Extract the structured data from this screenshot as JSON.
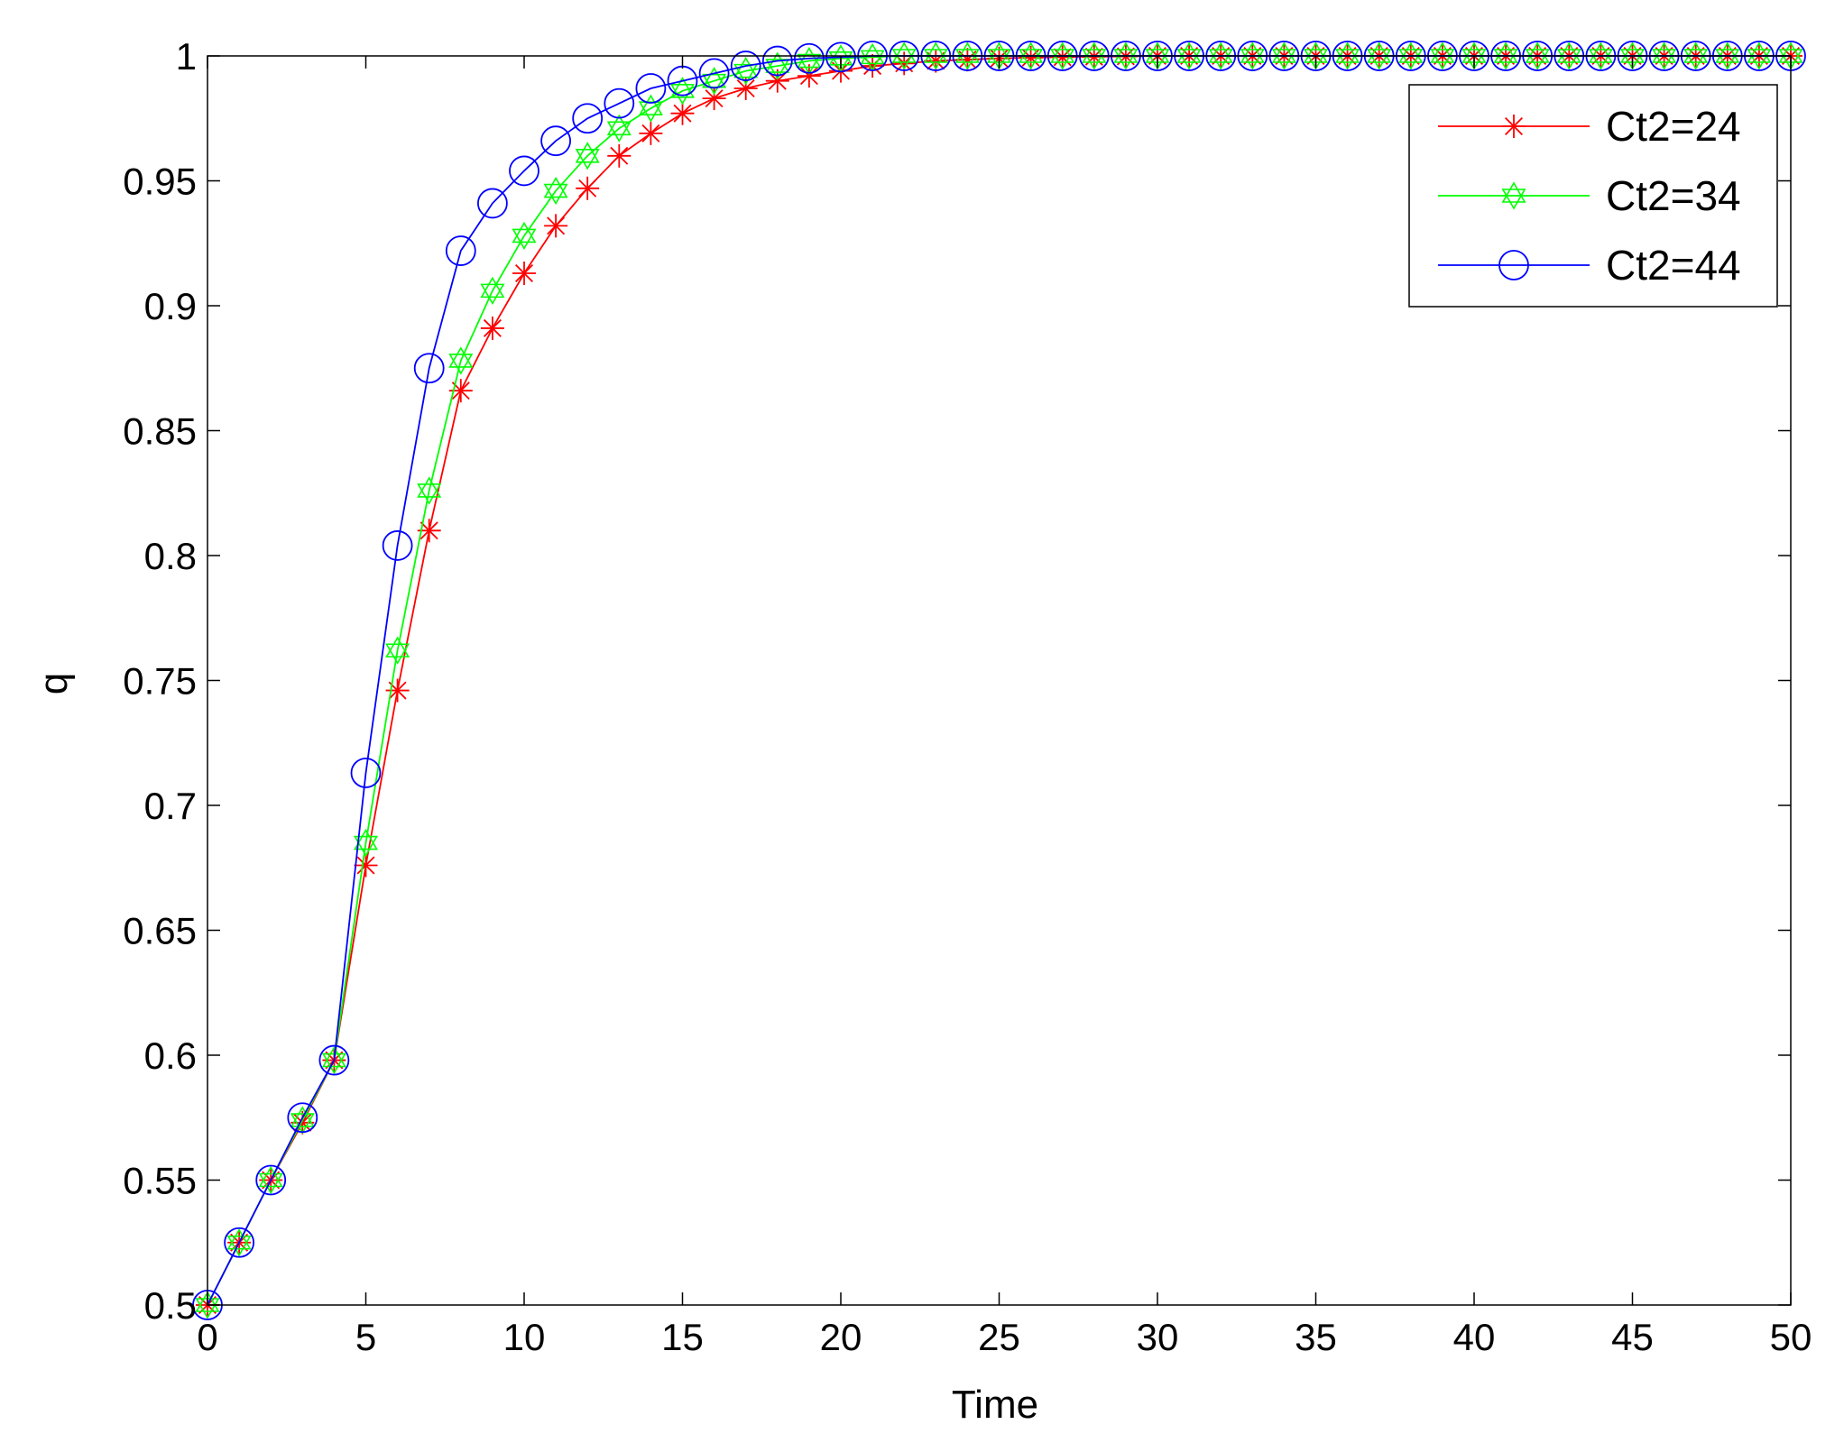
{
  "chart_data": {
    "type": "line",
    "title": "",
    "xlabel": "Time",
    "ylabel": "q",
    "xlim": [
      0,
      50
    ],
    "ylim": [
      0.5,
      1
    ],
    "x_ticks": [
      0,
      5,
      10,
      15,
      20,
      25,
      30,
      35,
      40,
      45,
      50
    ],
    "y_ticks": [
      0.5,
      0.55,
      0.6,
      0.65,
      0.7,
      0.75,
      0.8,
      0.85,
      0.9,
      0.95,
      1
    ],
    "x_tick_labels": [
      "0",
      "5",
      "10",
      "15",
      "20",
      "25",
      "30",
      "35",
      "40",
      "45",
      "50"
    ],
    "y_tick_labels": [
      "0.5",
      "0.55",
      "0.6",
      "0.65",
      "0.7",
      "0.75",
      "0.8",
      "0.85",
      "0.9",
      "0.95",
      "1"
    ],
    "grid": false,
    "legend_position": "top-right",
    "series": [
      {
        "name": "Ct2=24",
        "color": "#ff0000",
        "marker": "asterisk",
        "values": [
          0.5,
          0.525,
          0.55,
          0.573,
          0.598,
          0.676,
          0.746,
          0.81,
          0.866,
          0.891,
          0.913,
          0.932,
          0.947,
          0.96,
          0.969,
          0.977,
          0.983,
          0.987,
          0.99,
          0.992,
          0.994,
          0.996,
          0.997,
          0.998,
          0.9985,
          0.999,
          0.9993,
          0.9995,
          0.9997,
          0.9998,
          1,
          1,
          1,
          1,
          1,
          1,
          1,
          1,
          1,
          1,
          1,
          1,
          1,
          1,
          1,
          1,
          1,
          1,
          1,
          1,
          1
        ]
      },
      {
        "name": "Ct2=34",
        "color": "#00ff00",
        "marker": "hexagram",
        "values": [
          0.5,
          0.525,
          0.55,
          0.574,
          0.598,
          0.685,
          0.762,
          0.826,
          0.878,
          0.906,
          0.928,
          0.946,
          0.96,
          0.971,
          0.979,
          0.986,
          0.99,
          0.994,
          0.996,
          0.998,
          0.999,
          0.9995,
          1,
          1,
          1,
          1,
          1,
          1,
          1,
          1,
          1,
          1,
          1,
          1,
          1,
          1,
          1,
          1,
          1,
          1,
          1,
          1,
          1,
          1,
          1,
          1,
          1,
          1,
          1,
          1,
          1
        ]
      },
      {
        "name": "Ct2=44",
        "color": "#0000ff",
        "marker": "circle",
        "values": [
          0.5,
          0.525,
          0.55,
          0.575,
          0.598,
          0.713,
          0.804,
          0.875,
          0.922,
          0.941,
          0.954,
          0.966,
          0.975,
          0.981,
          0.987,
          0.99,
          0.993,
          0.996,
          0.998,
          0.999,
          0.9995,
          1,
          1,
          1,
          1,
          1,
          1,
          1,
          1,
          1,
          1,
          1,
          1,
          1,
          1,
          1,
          1,
          1,
          1,
          1,
          1,
          1,
          1,
          1,
          1,
          1,
          1,
          1,
          1,
          1,
          1
        ]
      }
    ]
  }
}
